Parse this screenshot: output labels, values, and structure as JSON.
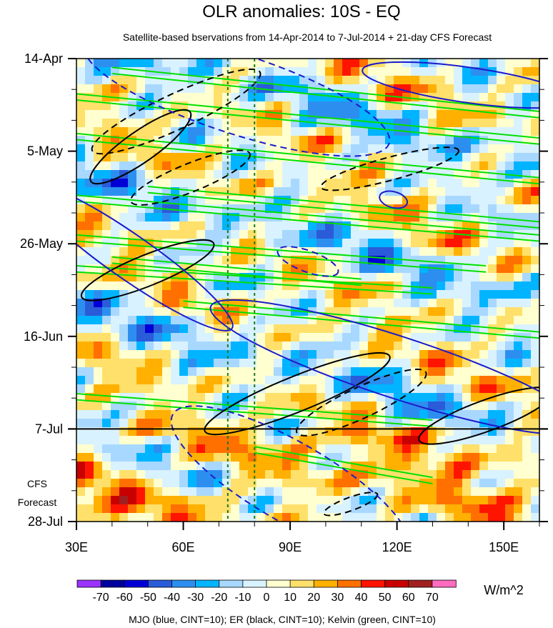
{
  "chart_data": {
    "type": "heatmap",
    "title": "OLR anomalies: 10S - EQ",
    "subtitle": "Satellite-based bservations from 14-Apr-2014 to 7-Jul-2014 + 21-day CFS Forecast",
    "y_tick_labels": [
      "14-Apr",
      "5-May",
      "26-May",
      "16-Jun",
      "7-Jul",
      "28-Jul"
    ],
    "forecast_label": [
      "CFS",
      "Forecast"
    ],
    "x_tick_labels": [
      "30E",
      "60E",
      "90E",
      "120E",
      "150E"
    ],
    "x_tick_values": [
      30,
      60,
      90,
      120,
      150
    ],
    "xlim": [
      30,
      160
    ],
    "ylim_days": [
      0,
      105
    ],
    "y_tick_days": [
      0,
      21,
      42,
      63,
      84,
      105
    ],
    "observation_end_day": 84,
    "reference_longitudes": [
      72.5,
      80
    ],
    "colorbar": {
      "unit": "W/m^2",
      "levels": [
        -70,
        -60,
        -50,
        -40,
        -30,
        -20,
        -10,
        0,
        10,
        20,
        30,
        40,
        50,
        60,
        70
      ],
      "level_labels": [
        "-70",
        "-60",
        "-50",
        "-40",
        "-30",
        "-20",
        "-10",
        "0",
        "10",
        "20",
        "30",
        "40",
        "50",
        "60",
        "70"
      ],
      "colors": [
        "#9a33ff",
        "#00009c",
        "#0000d6",
        "#2a5bd9",
        "#2c8ff0",
        "#00b4ff",
        "#a8d8ff",
        "#d9f2ff",
        "#ffffd0",
        "#ffe06a",
        "#ffb000",
        "#ff7000",
        "#ff1400",
        "#c80000",
        "#a02020",
        "#ff6cc0"
      ]
    },
    "contours": {
      "mjo": {
        "color": "#1a1acc",
        "cint": 10
      },
      "er": {
        "color": "#000000",
        "cint": 10
      },
      "kelvin": {
        "color": "#00e000",
        "cint": 10
      }
    },
    "footer": "MJO (blue, CINT=10); ER (black, CINT=10); Kelvin (green, CINT=10)"
  }
}
